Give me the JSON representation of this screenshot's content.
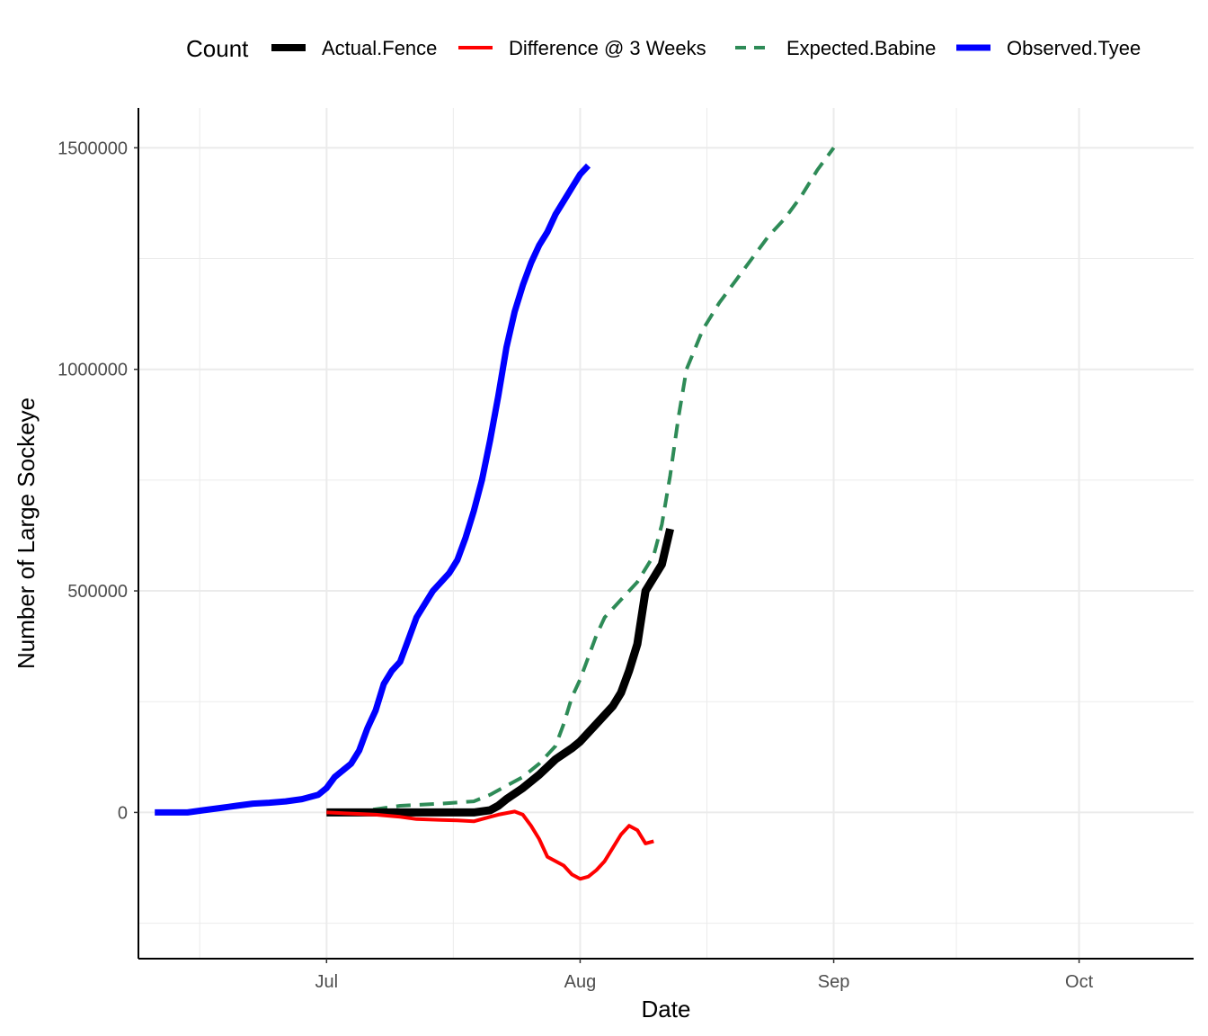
{
  "chart_data": {
    "type": "line",
    "xlabel": "Date",
    "ylabel": "Number of Large Sockeye",
    "legend": {
      "title": "Count",
      "position": "top"
    },
    "x_axis": {
      "type": "date",
      "range": [
        "2019-06-08",
        "2019-10-15"
      ],
      "ticks": [
        {
          "date": "2019-07-01",
          "label": "Jul"
        },
        {
          "date": "2019-08-01",
          "label": "Aug"
        },
        {
          "date": "2019-09-01",
          "label": "Sep"
        },
        {
          "date": "2019-10-01",
          "label": "Oct"
        }
      ]
    },
    "y_axis": {
      "range": [
        -330000,
        1590000
      ],
      "ticks": [
        0,
        500000,
        1000000,
        1500000
      ],
      "tick_labels": [
        "0",
        "500000",
        "1000000",
        "1500000"
      ]
    },
    "grid": true,
    "series": [
      {
        "name": "Actual.Fence",
        "color": "#000000",
        "dash": "solid",
        "points": [
          [
            "2019-07-01",
            0
          ],
          [
            "2019-07-05",
            0
          ],
          [
            "2019-07-10",
            0
          ],
          [
            "2019-07-15",
            0
          ],
          [
            "2019-07-19",
            0
          ],
          [
            "2019-07-21",
            5000
          ],
          [
            "2019-07-22",
            15000
          ],
          [
            "2019-07-23",
            30000
          ],
          [
            "2019-07-25",
            55000
          ],
          [
            "2019-07-27",
            85000
          ],
          [
            "2019-07-29",
            120000
          ],
          [
            "2019-07-31",
            145000
          ],
          [
            "2019-08-01",
            160000
          ],
          [
            "2019-08-03",
            200000
          ],
          [
            "2019-08-05",
            240000
          ],
          [
            "2019-08-06",
            270000
          ],
          [
            "2019-08-07",
            320000
          ],
          [
            "2019-08-08",
            380000
          ],
          [
            "2019-08-09",
            500000
          ],
          [
            "2019-08-10",
            530000
          ],
          [
            "2019-08-11",
            560000
          ],
          [
            "2019-08-12",
            640000
          ]
        ]
      },
      {
        "name": "Difference @ 3 Weeks",
        "color": "#ff0000",
        "dash": "solid",
        "points": [
          [
            "2019-07-01",
            0
          ],
          [
            "2019-07-07",
            -5000
          ],
          [
            "2019-07-10",
            -10000
          ],
          [
            "2019-07-12",
            -15000
          ],
          [
            "2019-07-15",
            -17000
          ],
          [
            "2019-07-17",
            -18000
          ],
          [
            "2019-07-19",
            -20000
          ],
          [
            "2019-07-21",
            -10000
          ],
          [
            "2019-07-22",
            -5000
          ],
          [
            "2019-07-24",
            2000
          ],
          [
            "2019-07-25",
            -5000
          ],
          [
            "2019-07-26",
            -30000
          ],
          [
            "2019-07-27",
            -60000
          ],
          [
            "2019-07-28",
            -100000
          ],
          [
            "2019-07-29",
            -110000
          ],
          [
            "2019-07-30",
            -120000
          ],
          [
            "2019-07-31",
            -140000
          ],
          [
            "2019-08-01",
            -150000
          ],
          [
            "2019-08-02",
            -145000
          ],
          [
            "2019-08-03",
            -130000
          ],
          [
            "2019-08-04",
            -110000
          ],
          [
            "2019-08-05",
            -80000
          ],
          [
            "2019-08-06",
            -50000
          ],
          [
            "2019-08-07",
            -30000
          ],
          [
            "2019-08-08",
            -40000
          ],
          [
            "2019-08-09",
            -70000
          ],
          [
            "2019-08-10",
            -65000
          ]
        ]
      },
      {
        "name": "Expected.Babine",
        "color": "#2e8b57",
        "dash": "dashed",
        "points": [
          [
            "2019-07-01",
            0
          ],
          [
            "2019-07-05",
            2000
          ],
          [
            "2019-07-10",
            15000
          ],
          [
            "2019-07-15",
            20000
          ],
          [
            "2019-07-19",
            25000
          ],
          [
            "2019-07-21",
            40000
          ],
          [
            "2019-07-23",
            60000
          ],
          [
            "2019-07-25",
            80000
          ],
          [
            "2019-07-27",
            110000
          ],
          [
            "2019-07-29",
            150000
          ],
          [
            "2019-07-30",
            200000
          ],
          [
            "2019-07-31",
            260000
          ],
          [
            "2019-08-01",
            300000
          ],
          [
            "2019-08-02",
            350000
          ],
          [
            "2019-08-03",
            400000
          ],
          [
            "2019-08-04",
            440000
          ],
          [
            "2019-08-06",
            480000
          ],
          [
            "2019-08-08",
            520000
          ],
          [
            "2019-08-10",
            580000
          ],
          [
            "2019-08-11",
            650000
          ],
          [
            "2019-08-12",
            760000
          ],
          [
            "2019-08-13",
            890000
          ],
          [
            "2019-08-14",
            1000000
          ],
          [
            "2019-08-16",
            1090000
          ],
          [
            "2019-08-18",
            1150000
          ],
          [
            "2019-08-20",
            1200000
          ],
          [
            "2019-08-22",
            1250000
          ],
          [
            "2019-08-24",
            1300000
          ],
          [
            "2019-08-26",
            1340000
          ],
          [
            "2019-08-28",
            1390000
          ],
          [
            "2019-08-30",
            1450000
          ],
          [
            "2019-09-01",
            1500000
          ]
        ]
      },
      {
        "name": "Observed.Tyee",
        "color": "#0000ff",
        "dash": "solid",
        "points": [
          [
            "2019-06-10",
            0
          ],
          [
            "2019-06-14",
            0
          ],
          [
            "2019-06-16",
            5000
          ],
          [
            "2019-06-18",
            10000
          ],
          [
            "2019-06-20",
            15000
          ],
          [
            "2019-06-22",
            20000
          ],
          [
            "2019-06-24",
            22000
          ],
          [
            "2019-06-26",
            25000
          ],
          [
            "2019-06-28",
            30000
          ],
          [
            "2019-06-30",
            40000
          ],
          [
            "2019-07-01",
            55000
          ],
          [
            "2019-07-02",
            80000
          ],
          [
            "2019-07-03",
            95000
          ],
          [
            "2019-07-04",
            110000
          ],
          [
            "2019-07-05",
            140000
          ],
          [
            "2019-07-06",
            190000
          ],
          [
            "2019-07-07",
            230000
          ],
          [
            "2019-07-08",
            290000
          ],
          [
            "2019-07-09",
            320000
          ],
          [
            "2019-07-10",
            340000
          ],
          [
            "2019-07-11",
            390000
          ],
          [
            "2019-07-12",
            440000
          ],
          [
            "2019-07-13",
            470000
          ],
          [
            "2019-07-14",
            500000
          ],
          [
            "2019-07-15",
            520000
          ],
          [
            "2019-07-16",
            540000
          ],
          [
            "2019-07-17",
            570000
          ],
          [
            "2019-07-18",
            620000
          ],
          [
            "2019-07-19",
            680000
          ],
          [
            "2019-07-20",
            750000
          ],
          [
            "2019-07-21",
            840000
          ],
          [
            "2019-07-22",
            940000
          ],
          [
            "2019-07-23",
            1050000
          ],
          [
            "2019-07-24",
            1130000
          ],
          [
            "2019-07-25",
            1190000
          ],
          [
            "2019-07-26",
            1240000
          ],
          [
            "2019-07-27",
            1280000
          ],
          [
            "2019-07-28",
            1310000
          ],
          [
            "2019-07-29",
            1350000
          ],
          [
            "2019-07-30",
            1380000
          ],
          [
            "2019-07-31",
            1410000
          ],
          [
            "2019-08-01",
            1440000
          ],
          [
            "2019-08-02",
            1460000
          ]
        ]
      }
    ]
  }
}
